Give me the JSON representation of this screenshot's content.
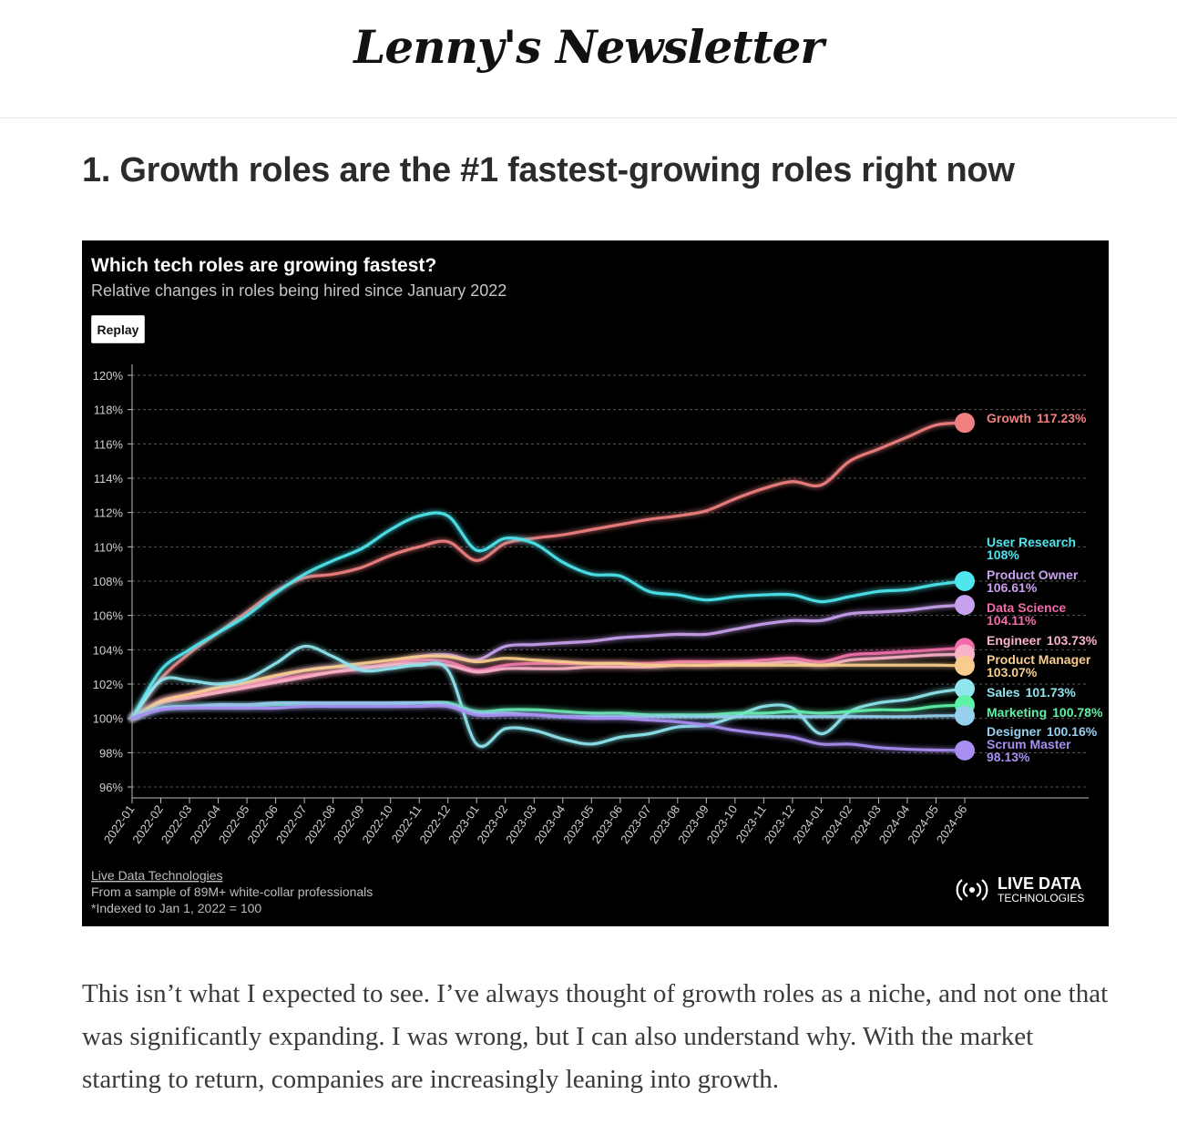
{
  "masthead": {
    "logo_text": "Lenny's Newsletter"
  },
  "article": {
    "heading": "1. Growth roles are the #1 fastest-growing roles right now",
    "body": "This isn’t what I expected to see. I’ve always thought of growth roles as a niche, and not one that was significantly expanding. I was wrong, but I can also understand why. With the market starting to return, companies are increasingly leaning into growth."
  },
  "chart_data": {
    "type": "line",
    "title": "Which tech roles are growing fastest?",
    "subtitle": "Relative changes in roles being hired since January 2022",
    "replay_label": "Replay",
    "ylim": [
      96,
      120
    ],
    "yticks": [
      96,
      98,
      100,
      102,
      104,
      106,
      108,
      110,
      112,
      114,
      116,
      118,
      120
    ],
    "ytick_suffix": "%",
    "grid": true,
    "x": [
      "2022-01",
      "2022-02",
      "2022-03",
      "2022-04",
      "2022-05",
      "2022-06",
      "2022-07",
      "2022-08",
      "2022-09",
      "2022-10",
      "2022-11",
      "2022-12",
      "2023-01",
      "2023-02",
      "2023-03",
      "2023-04",
      "2023-05",
      "2023-06",
      "2023-07",
      "2023-08",
      "2023-09",
      "2023-10",
      "2023-11",
      "2023-12",
      "2024-01",
      "2024-02",
      "2024-03",
      "2024-04",
      "2024-05",
      "2024-06"
    ],
    "series": [
      {
        "name": "Growth",
        "end_label": "117.23%",
        "color": "#f08080",
        "values": [
          100,
          102.3,
          103.8,
          105,
          106.2,
          107.4,
          108.2,
          108.4,
          108.8,
          109.5,
          110,
          110.3,
          109.2,
          110.2,
          110.5,
          110.7,
          111,
          111.3,
          111.6,
          111.8,
          112.1,
          112.8,
          113.4,
          113.8,
          113.6,
          115,
          115.7,
          116.4,
          117.1,
          117.23
        ]
      },
      {
        "name": "User Research",
        "end_label": "108%",
        "color": "#4fe6ee",
        "values": [
          100,
          102.8,
          104,
          105,
          106,
          107.3,
          108.4,
          109.2,
          109.9,
          111,
          111.8,
          111.8,
          109.8,
          110.5,
          110.2,
          109.1,
          108.4,
          108.3,
          107.4,
          107.2,
          106.9,
          107.1,
          107.2,
          107.2,
          106.8,
          107.1,
          107.4,
          107.5,
          107.8,
          108
        ]
      },
      {
        "name": "Product Owner",
        "end_label": "106.61%",
        "color": "#c9a0ef",
        "values": [
          100,
          101,
          101.4,
          101.8,
          102,
          102.4,
          102.8,
          103,
          103,
          103.1,
          103.6,
          103.7,
          103.4,
          104.2,
          104.3,
          104.4,
          104.5,
          104.7,
          104.8,
          104.9,
          104.9,
          105.2,
          105.5,
          105.7,
          105.7,
          106.1,
          106.2,
          106.3,
          106.5,
          106.61
        ]
      },
      {
        "name": "Data Science",
        "end_label": "104.11%",
        "color": "#f06ba8",
        "values": [
          100,
          101,
          101.3,
          101.6,
          101.9,
          102.2,
          102.5,
          102.7,
          102.9,
          103.2,
          103.4,
          103.3,
          102.8,
          103.1,
          103.2,
          103.2,
          103.2,
          103.2,
          103.2,
          103.3,
          103.3,
          103.3,
          103.4,
          103.5,
          103.3,
          103.7,
          103.8,
          103.9,
          104,
          104.11
        ]
      },
      {
        "name": "Engineer",
        "end_label": "103.73%",
        "color": "#f9b2c8",
        "values": [
          100,
          100.9,
          101.2,
          101.5,
          101.8,
          102.1,
          102.4,
          102.7,
          102.9,
          103.1,
          103.2,
          103.1,
          102.7,
          102.9,
          102.9,
          102.9,
          103,
          103,
          103,
          103.1,
          103.1,
          103.2,
          103.2,
          103.3,
          103.1,
          103.4,
          103.5,
          103.6,
          103.7,
          103.73
        ]
      },
      {
        "name": "Product Manager",
        "end_label": "103.07%",
        "color": "#f8cc8c",
        "values": [
          100,
          101,
          101.4,
          101.8,
          102.1,
          102.5,
          102.8,
          103,
          103.2,
          103.4,
          103.6,
          103.6,
          103.3,
          103.5,
          103.4,
          103.3,
          103.2,
          103.2,
          103.1,
          103.1,
          103.1,
          103.1,
          103.1,
          103.1,
          103.1,
          103.1,
          103.1,
          103.1,
          103.1,
          103.07
        ]
      },
      {
        "name": "Sales",
        "end_label": "101.73%",
        "color": "#8fe6ef",
        "values": [
          100,
          102.2,
          102.2,
          102,
          102.3,
          103.2,
          104.2,
          103.6,
          102.8,
          102.9,
          103.1,
          102.8,
          98.5,
          99.4,
          99.3,
          98.8,
          98.5,
          98.9,
          99.1,
          99.5,
          99.6,
          100.1,
          100.7,
          100.6,
          99.1,
          100.4,
          100.9,
          101.1,
          101.5,
          101.73
        ]
      },
      {
        "name": "Marketing",
        "end_label": "100.78%",
        "color": "#5ef2a6",
        "values": [
          100,
          100.6,
          100.7,
          100.7,
          100.7,
          100.8,
          100.8,
          100.8,
          100.8,
          100.8,
          100.9,
          100.9,
          100.4,
          100.5,
          100.5,
          100.4,
          100.3,
          100.3,
          100.2,
          100.2,
          100.2,
          100.3,
          100.3,
          100.4,
          100.3,
          100.4,
          100.5,
          100.5,
          100.7,
          100.78
        ]
      },
      {
        "name": "Designer",
        "end_label": "100.16%",
        "color": "#96d0ee",
        "values": [
          100,
          100.6,
          100.7,
          100.8,
          100.8,
          100.9,
          100.9,
          100.9,
          100.9,
          100.9,
          100.9,
          100.8,
          100.3,
          100.3,
          100.2,
          100.1,
          100.1,
          100.1,
          100.1,
          100.1,
          100.1,
          100.1,
          100.1,
          100.1,
          100.1,
          100.1,
          100.1,
          100.1,
          100.15,
          100.16
        ]
      },
      {
        "name": "Scrum Master",
        "end_label": "98.13%",
        "color": "#a98ef2",
        "values": [
          100,
          100.5,
          100.6,
          100.6,
          100.6,
          100.6,
          100.7,
          100.7,
          100.7,
          100.7,
          100.7,
          100.7,
          100.2,
          100.2,
          100.2,
          100.1,
          100,
          100,
          99.9,
          99.8,
          99.6,
          99.3,
          99.1,
          98.9,
          98.5,
          98.5,
          98.3,
          98.2,
          98.15,
          98.13
        ]
      }
    ],
    "source_link": "Live Data Technologies",
    "footnote_sample": "From a sample of 89M+ white-collar professionals",
    "footnote_index": "*Indexed to Jan 1, 2022 = 100",
    "brand_line1": "LIVE DATA",
    "brand_line2": "TECHNOLOGIES"
  }
}
